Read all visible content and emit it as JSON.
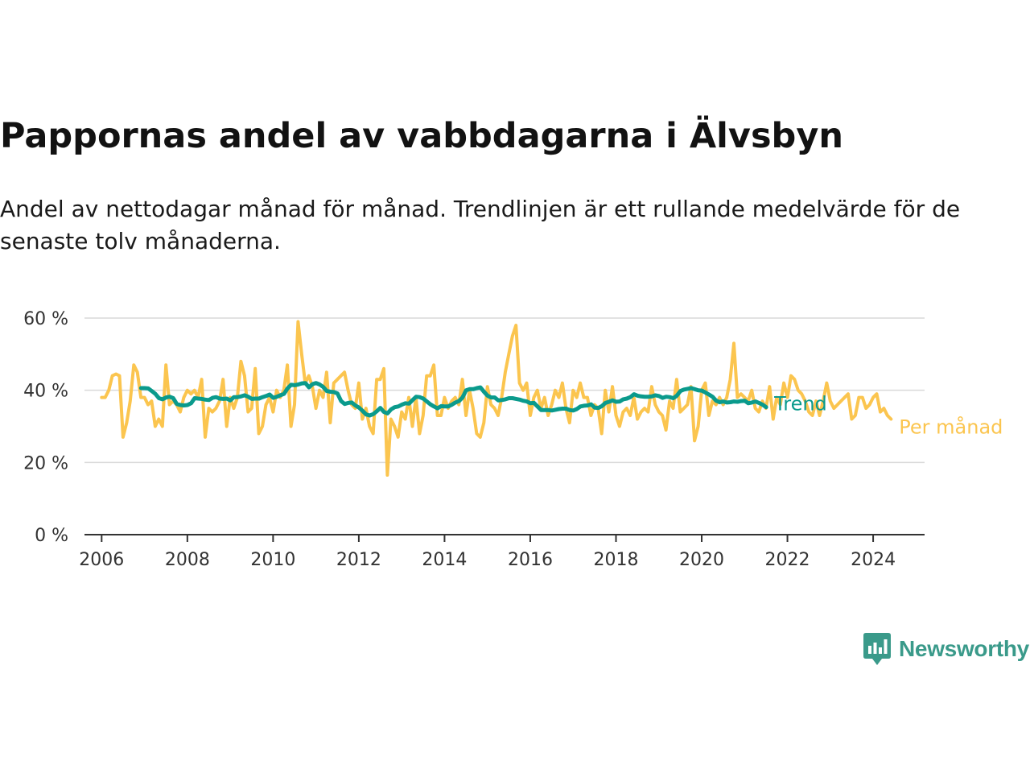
{
  "title": "Pappornas andel av vabbdagarna i Älvsbyn",
  "subtitle": "Andel av nettodagar månad för månad. Trendlinjen är ett rullande medelvärde för de senaste tolv månaderna.",
  "brand": {
    "name": "Newsworthy",
    "icon": "newsworthy-logo-icon",
    "color": "#3a9a8a"
  },
  "chart_data": {
    "type": "line",
    "x_axis": {
      "ticks": [
        "2006",
        "2008",
        "2010",
        "2012",
        "2014",
        "2016",
        "2018",
        "2020",
        "2022",
        "2024"
      ],
      "range": [
        2005.6,
        2025.2
      ]
    },
    "y_axis": {
      "ticks": [
        "0 %",
        "20 %",
        "40 %",
        "60 %"
      ],
      "range": [
        0,
        60
      ],
      "grid": true
    },
    "series": [
      {
        "name": "Per månad",
        "color": "#fbc54f",
        "start": 2006.0,
        "step_months": 1,
        "values": [
          38,
          38,
          40,
          44,
          44.5,
          44,
          27,
          31,
          37,
          47,
          45,
          38,
          38,
          36,
          37,
          30,
          32,
          30,
          47,
          36,
          37,
          36,
          34,
          38,
          40,
          39,
          40,
          38,
          43,
          27,
          35,
          34,
          35,
          37,
          43,
          30,
          38,
          35,
          38,
          48,
          44,
          34,
          35,
          46,
          28,
          30,
          36,
          38,
          34,
          40,
          38,
          40,
          47,
          30,
          36,
          59,
          50,
          42,
          44,
          41,
          35,
          40,
          38,
          45,
          31,
          42,
          43,
          44,
          45,
          40,
          36,
          35,
          42,
          32,
          35,
          30,
          28,
          43,
          43,
          46,
          16.5,
          32,
          30,
          27,
          34,
          32,
          38,
          30,
          38,
          28,
          33,
          44,
          44,
          47,
          33,
          33,
          38,
          35,
          37,
          38,
          36,
          43,
          33,
          40,
          35,
          28,
          27,
          31,
          41,
          36,
          35,
          33,
          38,
          45,
          50,
          55,
          58,
          42,
          40,
          42,
          33,
          38,
          40,
          35,
          38,
          33,
          36,
          40,
          38,
          42,
          35,
          31,
          40,
          38,
          42,
          38,
          38,
          33,
          36,
          35,
          28,
          40,
          34,
          41,
          33,
          30,
          34,
          35,
          33,
          38,
          32,
          34,
          35,
          34,
          41,
          36,
          34,
          33,
          29,
          37,
          35,
          43,
          34,
          35,
          36,
          41,
          26,
          30,
          40,
          42,
          33,
          37,
          36,
          38,
          36,
          38,
          43,
          53,
          38,
          39,
          38,
          37,
          40,
          35,
          34,
          37,
          35,
          41,
          32,
          38,
          36,
          42,
          38,
          44,
          43,
          40,
          39,
          37,
          34,
          33,
          37,
          33,
          37,
          42,
          37,
          35,
          36,
          37,
          38,
          39,
          32,
          33,
          38,
          38,
          35,
          36,
          38,
          39,
          34,
          35,
          33,
          32
        ]
      },
      {
        "name": "Trend",
        "color": "#0a9a8c",
        "start": 2006.92,
        "step_months": 1,
        "values": [
          40.6,
          40.6,
          40.5,
          39.8,
          39,
          37.8,
          37.5,
          38,
          38.2,
          37.8,
          36.2,
          35.9,
          35.8,
          35.9,
          36.4,
          37.8,
          37.7,
          37.6,
          37.4,
          37.3,
          37.9,
          38.1,
          37.7,
          37.6,
          37.7,
          37.2,
          38.1,
          38.1,
          38.3,
          38.6,
          38.2,
          37.6,
          37.7,
          37.7,
          38.1,
          38.4,
          38.8,
          37.9,
          38.2,
          38.6,
          39,
          40.5,
          41.5,
          41.4,
          41.6,
          41.9,
          42,
          40.8,
          41.7,
          42,
          41.6,
          40.9,
          39.8,
          39.6,
          39.5,
          39.1,
          37,
          36.2,
          36.5,
          36.6,
          35.8,
          35.2,
          34.3,
          33.3,
          33,
          33.4,
          34.2,
          35.1,
          34,
          33.6,
          34.7,
          35.3,
          35.5,
          36,
          36.4,
          36.3,
          37.3,
          38.2,
          38.1,
          37.7,
          36.9,
          36.1,
          35.5,
          35,
          35.6,
          35.5,
          35.5,
          36,
          36.6,
          37,
          38,
          40,
          40.3,
          40.3,
          40.6,
          40.8,
          39.6,
          38.5,
          38,
          38,
          37.2,
          37.3,
          37.5,
          37.8,
          37.8,
          37.6,
          37.4,
          37.1,
          36.9,
          36.4,
          36.5,
          35.5,
          34.5,
          34.5,
          34.5,
          34.4,
          34.6,
          34.8,
          34.9,
          34.9,
          34.5,
          34.4,
          34.8,
          35.5,
          35.7,
          35.8,
          36.1,
          35.2,
          35.1,
          35.6,
          36.5,
          36.8,
          37.2,
          36.8,
          36.9,
          37.5,
          37.7,
          38.1,
          38.9,
          38.5,
          38.3,
          38.2,
          38.2,
          38.3,
          38.6,
          38.4,
          37.9,
          38.2,
          38.1,
          37.8,
          38.5,
          39.8,
          40.2,
          40.4,
          40.6,
          40.3,
          40,
          39.9,
          39.4,
          38.8,
          38.2,
          37.1,
          36.7,
          36.9,
          36.6,
          36.7,
          36.9,
          36.8,
          37,
          37.1,
          36.4,
          36.6,
          36.9,
          36.5,
          36,
          35.3
        ]
      }
    ]
  }
}
